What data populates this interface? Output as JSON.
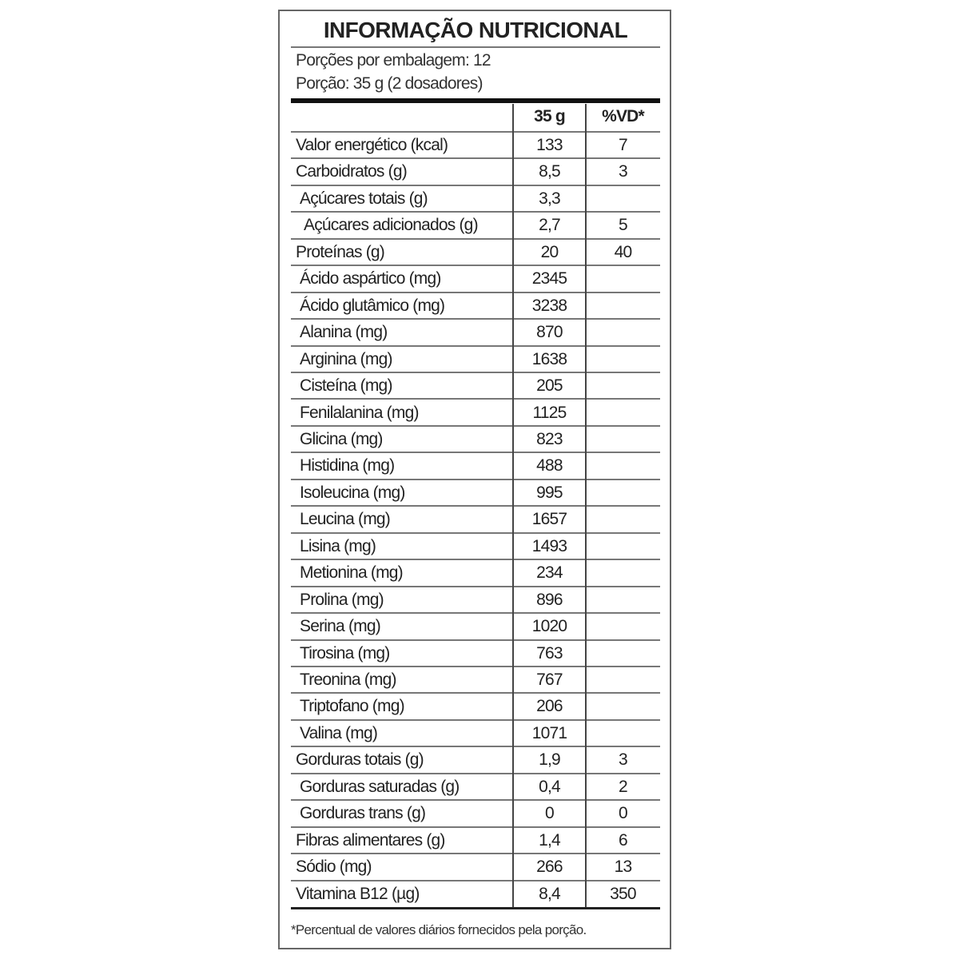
{
  "title": "INFORMAÇÃO NUTRICIONAL",
  "servings_per_package": "Porções por embalagem: 12",
  "serving_size": "Porção: 35 g (2 dosadores)",
  "columns": {
    "amount": "35 g",
    "dv": "%VD*"
  },
  "rows": [
    {
      "name": "Valor energético (kcal)",
      "amount": "133",
      "dv": "7",
      "level": 0
    },
    {
      "name": "Carboidratos (g)",
      "amount": "8,5",
      "dv": "3",
      "level": 0
    },
    {
      "name": "Açúcares totais (g)",
      "amount": "3,3",
      "dv": "",
      "level": 1
    },
    {
      "name": "Açúcares adicionados (g)",
      "amount": "2,7",
      "dv": "5",
      "level": 2
    },
    {
      "name": "Proteínas (g)",
      "amount": "20",
      "dv": "40",
      "level": 0
    },
    {
      "name": "Ácido aspártico (mg)",
      "amount": "2345",
      "dv": "",
      "level": 1
    },
    {
      "name": "Ácido glutâmico (mg)",
      "amount": "3238",
      "dv": "",
      "level": 1
    },
    {
      "name": "Alanina (mg)",
      "amount": "870",
      "dv": "",
      "level": 1
    },
    {
      "name": "Arginina (mg)",
      "amount": "1638",
      "dv": "",
      "level": 1
    },
    {
      "name": "Cisteína (mg)",
      "amount": "205",
      "dv": "",
      "level": 1
    },
    {
      "name": "Fenilalanina (mg)",
      "amount": "1125",
      "dv": "",
      "level": 1
    },
    {
      "name": "Glicina (mg)",
      "amount": "823",
      "dv": "",
      "level": 1
    },
    {
      "name": "Histidina (mg)",
      "amount": "488",
      "dv": "",
      "level": 1
    },
    {
      "name": "Isoleucina (mg)",
      "amount": "995",
      "dv": "",
      "level": 1
    },
    {
      "name": "Leucina (mg)",
      "amount": "1657",
      "dv": "",
      "level": 1
    },
    {
      "name": "Lisina (mg)",
      "amount": "1493",
      "dv": "",
      "level": 1
    },
    {
      "name": "Metionina (mg)",
      "amount": "234",
      "dv": "",
      "level": 1
    },
    {
      "name": "Prolina (mg)",
      "amount": "896",
      "dv": "",
      "level": 1
    },
    {
      "name": "Serina (mg)",
      "amount": "1020",
      "dv": "",
      "level": 1
    },
    {
      "name": "Tirosina (mg)",
      "amount": "763",
      "dv": "",
      "level": 1
    },
    {
      "name": "Treonina (mg)",
      "amount": "767",
      "dv": "",
      "level": 1
    },
    {
      "name": "Triptofano (mg)",
      "amount": "206",
      "dv": "",
      "level": 1
    },
    {
      "name": "Valina (mg)",
      "amount": "1071",
      "dv": "",
      "level": 1
    },
    {
      "name": "Gorduras totais (g)",
      "amount": "1,9",
      "dv": "3",
      "level": 0
    },
    {
      "name": "Gorduras saturadas (g)",
      "amount": "0,4",
      "dv": "2",
      "level": 1
    },
    {
      "name": "Gorduras trans (g)",
      "amount": "0",
      "dv": "0",
      "level": 1
    },
    {
      "name": "Fibras alimentares (g)",
      "amount": "1,4",
      "dv": "6",
      "level": 0
    },
    {
      "name": "Sódio (mg)",
      "amount": "266",
      "dv": "13",
      "level": 0
    },
    {
      "name": "Vitamina B12 (µg)",
      "amount": "8,4",
      "dv": "350",
      "level": 0
    }
  ],
  "footnote": "*Percentual de valores diários fornecidos pela porção."
}
